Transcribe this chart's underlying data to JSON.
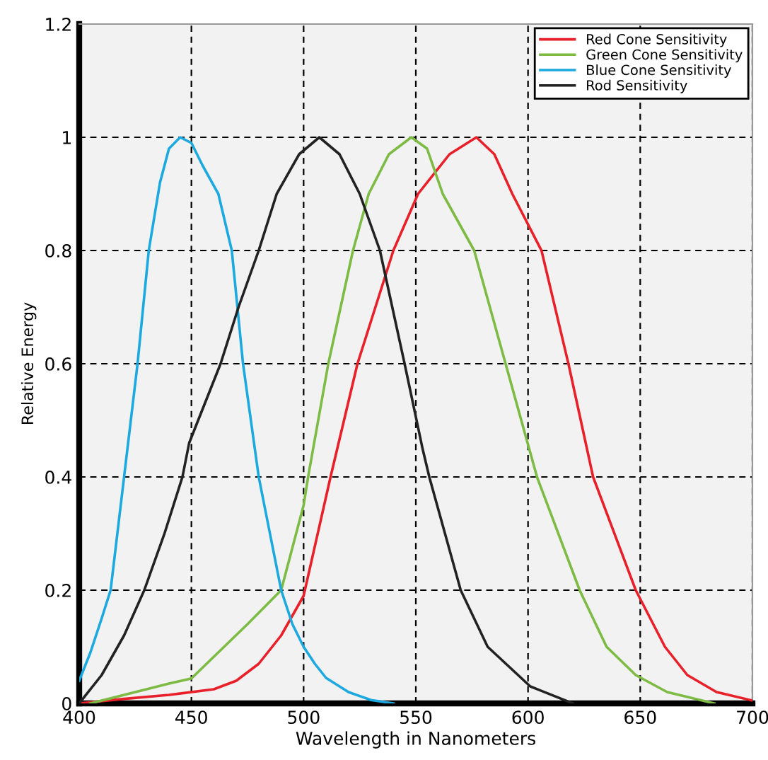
{
  "chart_data": {
    "type": "line",
    "xlabel": "Wavelength in Nanometers",
    "ylabel": "Relative Energy",
    "xlim": [
      400,
      700
    ],
    "xticks": [
      400,
      450,
      500,
      550,
      600,
      650,
      700
    ],
    "ylim": [
      0,
      1.2
    ],
    "yticks": [
      0,
      0.2,
      0.4,
      0.6,
      0.8,
      1,
      1.2
    ],
    "grid": true,
    "legend": "top right",
    "marker": "none",
    "line_style": "solid",
    "series": [
      {
        "name": "Red Cone Sensitivity",
        "color": "#e8202a",
        "x": [
          400,
          420,
          440,
          460,
          470,
          480,
          490,
          500,
          512,
          524,
          540,
          551,
          565,
          577,
          585,
          593,
          606,
          618,
          629,
          648,
          661,
          671,
          684,
          700
        ],
        "values": [
          0,
          0.008,
          0.015,
          0.025,
          0.04,
          0.07,
          0.12,
          0.19,
          0.4,
          0.6,
          0.8,
          0.9,
          0.97,
          1.0,
          0.97,
          0.9,
          0.8,
          0.6,
          0.4,
          0.2,
          0.1,
          0.05,
          0.02,
          0.005
        ]
      },
      {
        "name": "Green Cone Sensitivity",
        "color": "#7dbb45",
        "x": [
          405,
          420,
          430,
          440,
          450,
          475,
          490,
          500,
          502,
          511,
          522,
          529,
          538,
          548,
          555,
          562,
          576,
          590,
          604,
          623,
          635,
          648,
          662,
          683
        ],
        "values": [
          0,
          0.015,
          0.025,
          0.035,
          0.044,
          0.14,
          0.2,
          0.35,
          0.4,
          0.6,
          0.8,
          0.9,
          0.97,
          1.0,
          0.98,
          0.9,
          0.8,
          0.6,
          0.4,
          0.2,
          0.1,
          0.05,
          0.02,
          0
        ]
      },
      {
        "name": "Blue Cone Sensitivity",
        "color": "#1ca9e0",
        "x": [
          400,
          405,
          410,
          414,
          420,
          426,
          431,
          436,
          440,
          445,
          450,
          455,
          462,
          468,
          473,
          480,
          485,
          490,
          495,
          500,
          505,
          510,
          520,
          530,
          540
        ],
        "values": [
          0.04,
          0.09,
          0.15,
          0.2,
          0.4,
          0.6,
          0.8,
          0.92,
          0.98,
          1.0,
          0.99,
          0.95,
          0.9,
          0.8,
          0.6,
          0.4,
          0.3,
          0.2,
          0.14,
          0.1,
          0.07,
          0.045,
          0.02,
          0.006,
          0
        ]
      },
      {
        "name": "Rod Sensitivity",
        "color": "#222222",
        "x": [
          400,
          410,
          420,
          429,
          438,
          446,
          449,
          456,
          463,
          471,
          480,
          488,
          498,
          507,
          516,
          525,
          534,
          545,
          553,
          556,
          563,
          570,
          582,
          601,
          620
        ],
        "values": [
          0,
          0.05,
          0.12,
          0.2,
          0.3,
          0.4,
          0.46,
          0.53,
          0.6,
          0.7,
          0.8,
          0.9,
          0.97,
          1.0,
          0.97,
          0.9,
          0.8,
          0.6,
          0.45,
          0.4,
          0.3,
          0.2,
          0.1,
          0.03,
          0
        ]
      }
    ]
  }
}
